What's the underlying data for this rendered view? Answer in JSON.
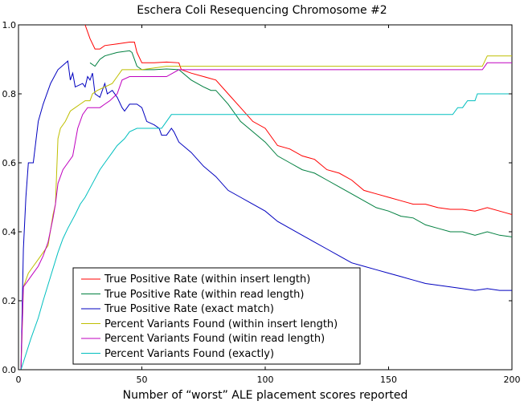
{
  "chart_data": {
    "type": "line",
    "title": "Eschera Coli Resequencing Chromosome #2",
    "xlabel": "Number of “worst” ALE placement scores reported",
    "ylabel": "",
    "xlim": [
      0,
      200
    ],
    "ylim": [
      0.0,
      1.0
    ],
    "xticks": [
      "0",
      "50",
      "100",
      "150",
      "200"
    ],
    "yticks": [
      "0.0",
      "0.2",
      "0.4",
      "0.6",
      "0.8",
      "1.0"
    ],
    "grid": false,
    "legend_position": "lower-left",
    "series": [
      {
        "name": "True Positive Rate (within insert length)",
        "color": "#ff0000",
        "points": [
          [
            27,
            1.0
          ],
          [
            29,
            0.96
          ],
          [
            31,
            0.93
          ],
          [
            33,
            0.93
          ],
          [
            35,
            0.94
          ],
          [
            40,
            0.945
          ],
          [
            45,
            0.95
          ],
          [
            47,
            0.95
          ],
          [
            48,
            0.92
          ],
          [
            50,
            0.89
          ],
          [
            55,
            0.89
          ],
          [
            60,
            0.892
          ],
          [
            65,
            0.89
          ],
          [
            66,
            0.87
          ],
          [
            70,
            0.86
          ],
          [
            75,
            0.85
          ],
          [
            80,
            0.84
          ],
          [
            85,
            0.8
          ],
          [
            90,
            0.76
          ],
          [
            95,
            0.72
          ],
          [
            100,
            0.7
          ],
          [
            105,
            0.65
          ],
          [
            110,
            0.64
          ],
          [
            115,
            0.62
          ],
          [
            120,
            0.61
          ],
          [
            125,
            0.58
          ],
          [
            130,
            0.57
          ],
          [
            135,
            0.55
          ],
          [
            140,
            0.52
          ],
          [
            145,
            0.51
          ],
          [
            150,
            0.5
          ],
          [
            155,
            0.49
          ],
          [
            160,
            0.48
          ],
          [
            165,
            0.48
          ],
          [
            170,
            0.47
          ],
          [
            175,
            0.465
          ],
          [
            180,
            0.465
          ],
          [
            185,
            0.46
          ],
          [
            190,
            0.47
          ],
          [
            195,
            0.46
          ],
          [
            200,
            0.45
          ]
        ]
      },
      {
        "name": "True Positive Rate (within read length)",
        "color": "#007f3f",
        "points": [
          [
            29,
            0.89
          ],
          [
            31,
            0.88
          ],
          [
            33,
            0.9
          ],
          [
            35,
            0.91
          ],
          [
            40,
            0.92
          ],
          [
            45,
            0.925
          ],
          [
            46,
            0.92
          ],
          [
            48,
            0.88
          ],
          [
            50,
            0.87
          ],
          [
            55,
            0.87
          ],
          [
            60,
            0.872
          ],
          [
            65,
            0.87
          ],
          [
            70,
            0.84
          ],
          [
            75,
            0.82
          ],
          [
            78,
            0.81
          ],
          [
            80,
            0.81
          ],
          [
            85,
            0.77
          ],
          [
            90,
            0.72
          ],
          [
            95,
            0.69
          ],
          [
            100,
            0.66
          ],
          [
            105,
            0.62
          ],
          [
            110,
            0.6
          ],
          [
            115,
            0.58
          ],
          [
            120,
            0.57
          ],
          [
            125,
            0.55
          ],
          [
            130,
            0.53
          ],
          [
            135,
            0.51
          ],
          [
            140,
            0.49
          ],
          [
            145,
            0.47
          ],
          [
            150,
            0.46
          ],
          [
            155,
            0.445
          ],
          [
            160,
            0.44
          ],
          [
            165,
            0.42
          ],
          [
            170,
            0.41
          ],
          [
            175,
            0.4
          ],
          [
            180,
            0.4
          ],
          [
            185,
            0.39
          ],
          [
            190,
            0.4
          ],
          [
            195,
            0.39
          ],
          [
            200,
            0.385
          ]
        ]
      },
      {
        "name": "True Positive Rate (exact match)",
        "color": "#0000bf",
        "points": [
          [
            1,
            0.0
          ],
          [
            2,
            0.35
          ],
          [
            3,
            0.5
          ],
          [
            4,
            0.6
          ],
          [
            6,
            0.6
          ],
          [
            7,
            0.66
          ],
          [
            8,
            0.72
          ],
          [
            10,
            0.77
          ],
          [
            13,
            0.83
          ],
          [
            16,
            0.87
          ],
          [
            20,
            0.895
          ],
          [
            21,
            0.84
          ],
          [
            22,
            0.86
          ],
          [
            23,
            0.82
          ],
          [
            26,
            0.83
          ],
          [
            27,
            0.82
          ],
          [
            28,
            0.85
          ],
          [
            29,
            0.84
          ],
          [
            30,
            0.86
          ],
          [
            31,
            0.8
          ],
          [
            33,
            0.79
          ],
          [
            35,
            0.83
          ],
          [
            36,
            0.8
          ],
          [
            38,
            0.81
          ],
          [
            40,
            0.79
          ],
          [
            42,
            0.76
          ],
          [
            43,
            0.75
          ],
          [
            45,
            0.77
          ],
          [
            48,
            0.77
          ],
          [
            50,
            0.76
          ],
          [
            52,
            0.72
          ],
          [
            55,
            0.71
          ],
          [
            57,
            0.7
          ],
          [
            58,
            0.68
          ],
          [
            60,
            0.68
          ],
          [
            62,
            0.7
          ],
          [
            63,
            0.69
          ],
          [
            65,
            0.66
          ],
          [
            70,
            0.63
          ],
          [
            75,
            0.59
          ],
          [
            80,
            0.56
          ],
          [
            85,
            0.52
          ],
          [
            90,
            0.5
          ],
          [
            95,
            0.48
          ],
          [
            100,
            0.46
          ],
          [
            105,
            0.43
          ],
          [
            110,
            0.41
          ],
          [
            115,
            0.39
          ],
          [
            120,
            0.37
          ],
          [
            125,
            0.35
          ],
          [
            130,
            0.33
          ],
          [
            135,
            0.31
          ],
          [
            140,
            0.3
          ],
          [
            145,
            0.29
          ],
          [
            150,
            0.28
          ],
          [
            155,
            0.27
          ],
          [
            160,
            0.26
          ],
          [
            165,
            0.25
          ],
          [
            170,
            0.245
          ],
          [
            175,
            0.24
          ],
          [
            180,
            0.235
          ],
          [
            185,
            0.23
          ],
          [
            190,
            0.235
          ],
          [
            195,
            0.23
          ],
          [
            200,
            0.23
          ]
        ]
      },
      {
        "name": "Percent Variants Found (within insert length)",
        "color": "#bfbf00",
        "points": [
          [
            1,
            0.0
          ],
          [
            2,
            0.24
          ],
          [
            3,
            0.26
          ],
          [
            4,
            0.28
          ],
          [
            6,
            0.3
          ],
          [
            8,
            0.32
          ],
          [
            10,
            0.34
          ],
          [
            12,
            0.36
          ],
          [
            14,
            0.45
          ],
          [
            15,
            0.48
          ],
          [
            16,
            0.67
          ],
          [
            17,
            0.7
          ],
          [
            19,
            0.72
          ],
          [
            21,
            0.75
          ],
          [
            23,
            0.76
          ],
          [
            25,
            0.77
          ],
          [
            27,
            0.78
          ],
          [
            29,
            0.78
          ],
          [
            30,
            0.8
          ],
          [
            32,
            0.81
          ],
          [
            35,
            0.82
          ],
          [
            38,
            0.83
          ],
          [
            40,
            0.85
          ],
          [
            42,
            0.87
          ],
          [
            45,
            0.87
          ],
          [
            50,
            0.87
          ],
          [
            55,
            0.875
          ],
          [
            60,
            0.88
          ],
          [
            65,
            0.88
          ],
          [
            70,
            0.88
          ],
          [
            100,
            0.88
          ],
          [
            150,
            0.88
          ],
          [
            188,
            0.88
          ],
          [
            190,
            0.91
          ],
          [
            200,
            0.91
          ]
        ]
      },
      {
        "name": "Percent Variants Found (witin read length)",
        "color": "#bf00bf",
        "points": [
          [
            1,
            0.0
          ],
          [
            2,
            0.24
          ],
          [
            4,
            0.26
          ],
          [
            6,
            0.28
          ],
          [
            8,
            0.3
          ],
          [
            10,
            0.33
          ],
          [
            12,
            0.37
          ],
          [
            14,
            0.44
          ],
          [
            15,
            0.48
          ],
          [
            16,
            0.54
          ],
          [
            17,
            0.56
          ],
          [
            18,
            0.58
          ],
          [
            20,
            0.6
          ],
          [
            22,
            0.62
          ],
          [
            24,
            0.7
          ],
          [
            26,
            0.74
          ],
          [
            28,
            0.76
          ],
          [
            33,
            0.76
          ],
          [
            35,
            0.77
          ],
          [
            37,
            0.78
          ],
          [
            40,
            0.8
          ],
          [
            42,
            0.84
          ],
          [
            45,
            0.85
          ],
          [
            50,
            0.85
          ],
          [
            55,
            0.85
          ],
          [
            60,
            0.85
          ],
          [
            65,
            0.87
          ],
          [
            70,
            0.87
          ],
          [
            100,
            0.87
          ],
          [
            150,
            0.87
          ],
          [
            188,
            0.87
          ],
          [
            190,
            0.89
          ],
          [
            200,
            0.89
          ]
        ]
      },
      {
        "name": "Percent Variants Found (exactly)",
        "color": "#00bfbf",
        "points": [
          [
            1,
            0.0
          ],
          [
            5,
            0.09
          ],
          [
            8,
            0.15
          ],
          [
            10,
            0.2
          ],
          [
            13,
            0.27
          ],
          [
            16,
            0.34
          ],
          [
            18,
            0.38
          ],
          [
            20,
            0.41
          ],
          [
            23,
            0.45
          ],
          [
            25,
            0.48
          ],
          [
            27,
            0.5
          ],
          [
            30,
            0.54
          ],
          [
            33,
            0.58
          ],
          [
            35,
            0.6
          ],
          [
            38,
            0.63
          ],
          [
            40,
            0.65
          ],
          [
            43,
            0.67
          ],
          [
            45,
            0.69
          ],
          [
            48,
            0.7
          ],
          [
            50,
            0.7
          ],
          [
            55,
            0.7
          ],
          [
            58,
            0.7
          ],
          [
            60,
            0.72
          ],
          [
            62,
            0.74
          ],
          [
            70,
            0.74
          ],
          [
            100,
            0.74
          ],
          [
            150,
            0.74
          ],
          [
            176,
            0.74
          ],
          [
            178,
            0.76
          ],
          [
            180,
            0.76
          ],
          [
            182,
            0.78
          ],
          [
            185,
            0.78
          ],
          [
            186,
            0.8
          ],
          [
            200,
            0.8
          ]
        ]
      }
    ]
  }
}
